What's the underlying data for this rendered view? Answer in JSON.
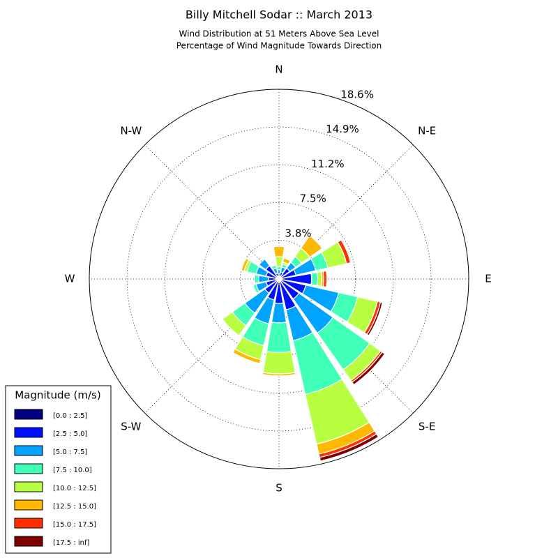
{
  "chart_data": {
    "type": "windrose",
    "title": "Billy Mitchell Sodar :: March 2013",
    "subtitle": [
      "Wind Distribution at 51 Meters Above Sea Level",
      "Percentage of Wind Magnitude Towards Direction"
    ],
    "categories": [
      "N",
      null,
      "N-E",
      null,
      "E",
      null,
      "S-E",
      null,
      "S",
      null,
      "S-W",
      null,
      "W",
      null,
      "N-W",
      null
    ],
    "ylim": [
      0,
      18.6
    ],
    "yticks": [
      {
        "value": 3.8,
        "label": "3.8%"
      },
      {
        "value": 7.5,
        "label": "7.5%"
      },
      {
        "value": 11.2,
        "label": "11.2%"
      },
      {
        "value": 14.9,
        "label": "14.9%"
      },
      {
        "value": 18.6,
        "label": "18.6%"
      }
    ],
    "grid": true,
    "legend_title": "Magnitude (m/s)",
    "legend_position": "lower-left",
    "series": [
      {
        "name": "[0.0 : 2.5]",
        "color": "#000080",
        "values": [
          0.1,
          0.1,
          0.1,
          0.2,
          0.2,
          0.2,
          0.2,
          0.3,
          0.1,
          0.1,
          0.1,
          0.1,
          0.1,
          0.1,
          0.1,
          0.1
        ]
      },
      {
        "name": "[2.5 : 5.0]",
        "color": "#0010ff",
        "values": [
          0.4,
          0.6,
          1.2,
          1.5,
          3.0,
          2.5,
          2.2,
          2.8,
          2.3,
          2.0,
          1.6,
          1.2,
          0.9,
          1.2,
          1.5,
          0.5
        ]
      },
      {
        "name": "[5.0 : 7.5]",
        "color": "#00a4ff",
        "values": [
          0.4,
          0.5,
          0.7,
          2.0,
          0,
          3.3,
          4.1,
          3.1,
          1.9,
          2.4,
          2.4,
          1.0,
          1.0,
          1.0,
          0.8,
          0.5
        ]
      },
      {
        "name": "[7.5 : 10.0]",
        "color": "#40ffb7",
        "values": [
          0.3,
          0.3,
          0.7,
          1.2,
          0.6,
          1.9,
          4.4,
          5.4,
          2.9,
          2.2,
          1.5,
          0.3,
          0.4,
          0.9,
          0,
          0.3
        ]
      },
      {
        "name": "[10.0 : 12.5]",
        "color": "#b7ff40",
        "values": [
          1.0,
          0.2,
          1.0,
          1.9,
          0.4,
          2.0,
          1.3,
          5.0,
          2.1,
          1.4,
          1.2,
          0,
          0,
          0.3,
          0,
          0
        ]
      },
      {
        "name": "[12.5 : 15.0]",
        "color": "#ffb900",
        "values": [
          1.0,
          0.4,
          1.5,
          0,
          0.2,
          0,
          0,
          1.0,
          0.2,
          0.4,
          0,
          0,
          0,
          0.3,
          0,
          0
        ]
      },
      {
        "name": "[15.0 : 17.5]",
        "color": "#ff3000",
        "values": [
          0,
          0,
          0,
          0.4,
          0.3,
          0.3,
          0.2,
          0.35,
          0,
          0,
          0,
          0,
          0,
          0,
          0,
          0
        ]
      },
      {
        "name": "[17.5 : inf]",
        "color": "#800000",
        "values": [
          0,
          0,
          0,
          0,
          0,
          0.2,
          0.3,
          0.35,
          0,
          0,
          0,
          0,
          0,
          0,
          0,
          0
        ]
      }
    ]
  }
}
